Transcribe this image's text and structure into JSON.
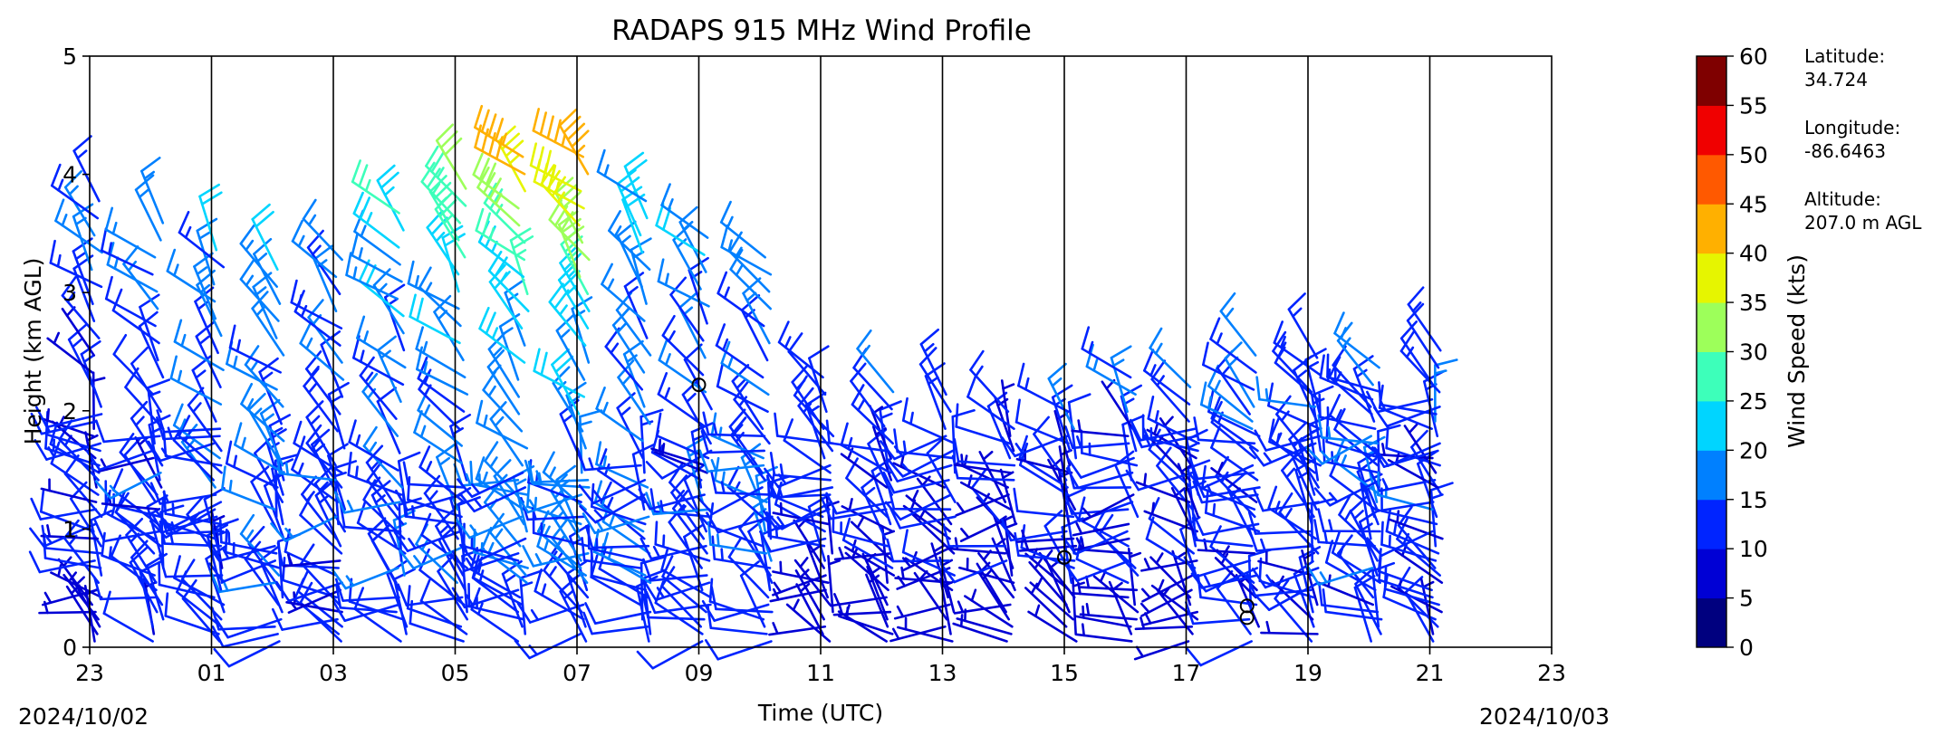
{
  "chart_data": {
    "type": "wind-barb profile",
    "title": "RADAPS 915 MHz Wind Profile",
    "xlabel": "Time (UTC)",
    "ylabel": "Height (km AGL)",
    "x_ticks": [
      "23",
      "01",
      "03",
      "05",
      "07",
      "09",
      "11",
      "13",
      "15",
      "17",
      "19",
      "21",
      "23"
    ],
    "x_start_date": "2024/10/02",
    "x_end_date": "2024/10/03",
    "y_ticks": [
      "0",
      "1",
      "2",
      "3",
      "4",
      "5"
    ],
    "ylim": [
      0,
      5
    ],
    "xlim_hours": [
      0,
      24
    ],
    "colorbar": {
      "label": "Wind Speed (kts)",
      "ticks": [
        "0",
        "5",
        "10",
        "15",
        "20",
        "25",
        "30",
        "35",
        "40",
        "45",
        "50",
        "55",
        "60"
      ],
      "colors": [
        "#00007f",
        "#0000d5",
        "#0024ff",
        "#0080ff",
        "#00d5ff",
        "#3dffba",
        "#9dff5a",
        "#e6f500",
        "#ffb000",
        "#ff5900",
        "#f00000",
        "#7f0000"
      ]
    },
    "vertical_lines_hours": [
      2,
      4,
      6,
      8,
      10,
      12,
      14,
      16,
      18,
      20,
      22
    ],
    "profiles": [
      {
        "hour": 0.0,
        "top_km": 3.8,
        "dense_top_km": 2.0,
        "typical_kts": 11,
        "max_kts": 17
      },
      {
        "hour": 1.0,
        "top_km": 3.6,
        "dense_top_km": 1.8,
        "typical_kts": 12,
        "max_kts": 17
      },
      {
        "hour": 2.0,
        "top_km": 3.5,
        "dense_top_km": 1.9,
        "typical_kts": 12,
        "max_kts": 19
      },
      {
        "hour": 3.0,
        "top_km": 3.2,
        "dense_top_km": 1.6,
        "typical_kts": 14,
        "max_kts": 19
      },
      {
        "hour": 4.0,
        "top_km": 3.3,
        "dense_top_km": 1.5,
        "typical_kts": 12,
        "max_kts": 17
      },
      {
        "hour": 5.0,
        "top_km": 3.8,
        "dense_top_km": 1.3,
        "typical_kts": 13,
        "max_kts": 26
      },
      {
        "hour": 6.0,
        "top_km": 4.0,
        "dense_top_km": 1.4,
        "typical_kts": 14,
        "max_kts": 33
      },
      {
        "hour": 7.0,
        "top_km": 4.2,
        "dense_top_km": 1.5,
        "typical_kts": 15,
        "max_kts": 42
      },
      {
        "hour": 8.0,
        "top_km": 4.2,
        "dense_top_km": 1.5,
        "typical_kts": 16,
        "max_kts": 47
      },
      {
        "hour": 9.0,
        "top_km": 3.9,
        "dense_top_km": 1.6,
        "typical_kts": 14,
        "max_kts": 23
      },
      {
        "hour": 10.0,
        "top_km": 3.5,
        "dense_top_km": 1.7,
        "typical_kts": 12,
        "max_kts": 20
      },
      {
        "hour": 11.0,
        "top_km": 3.3,
        "dense_top_km": 1.8,
        "typical_kts": 13,
        "max_kts": 19
      },
      {
        "hour": 12.0,
        "top_km": 2.4,
        "dense_top_km": 1.8,
        "typical_kts": 11,
        "max_kts": 14
      },
      {
        "hour": 13.0,
        "top_km": 2.2,
        "dense_top_km": 1.7,
        "typical_kts": 10,
        "max_kts": 14
      },
      {
        "hour": 14.0,
        "top_km": 2.2,
        "dense_top_km": 1.8,
        "typical_kts": 9,
        "max_kts": 13
      },
      {
        "hour": 15.0,
        "top_km": 2.1,
        "dense_top_km": 1.8,
        "typical_kts": 9,
        "max_kts": 13
      },
      {
        "hour": 16.0,
        "top_km": 2.1,
        "dense_top_km": 1.8,
        "typical_kts": 9,
        "max_kts": 15
      },
      {
        "hour": 17.0,
        "top_km": 2.3,
        "dense_top_km": 1.8,
        "typical_kts": 10,
        "max_kts": 14
      },
      {
        "hour": 18.0,
        "top_km": 2.3,
        "dense_top_km": 1.9,
        "typical_kts": 10,
        "max_kts": 14
      },
      {
        "hour": 19.0,
        "top_km": 2.6,
        "dense_top_km": 2.0,
        "typical_kts": 12,
        "max_kts": 16
      },
      {
        "hour": 20.0,
        "top_km": 2.5,
        "dense_top_km": 2.1,
        "typical_kts": 12,
        "max_kts": 15
      },
      {
        "hour": 21.0,
        "top_km": 2.5,
        "dense_top_km": 2.2,
        "typical_kts": 12,
        "max_kts": 16
      },
      {
        "hour": 22.0,
        "top_km": 2.6,
        "dense_top_km": 2.2,
        "typical_kts": 12,
        "max_kts": 15
      }
    ],
    "calm_markers": [
      {
        "hour": 10.0,
        "km": 2.22
      },
      {
        "hour": 16.0,
        "km": 0.76
      },
      {
        "hour": 19.0,
        "km": 0.35
      },
      {
        "hour": 19.0,
        "km": 0.25
      }
    ]
  },
  "site": {
    "lat_label": "Latitude:",
    "lat_value": "34.724",
    "lon_label": "Longitude:",
    "lon_value": "-86.6463",
    "alt_label": "Altitude:",
    "alt_value": "207.0 m AGL"
  }
}
